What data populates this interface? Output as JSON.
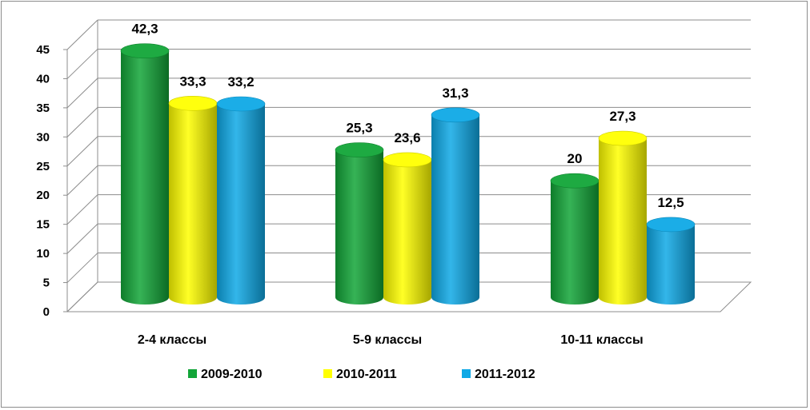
{
  "chart_data": {
    "type": "bar",
    "title": "",
    "xlabel": "",
    "ylabel": "",
    "categories": [
      "2-4 классы",
      "5-9 классы",
      "10-11 классы"
    ],
    "series": [
      {
        "name": "2009-2010",
        "color": "#12a538",
        "values": [
          42.3,
          25.3,
          20
        ],
        "labels": [
          "42,3",
          "25,3",
          "20"
        ]
      },
      {
        "name": "2010-2011",
        "color": "#ffff00",
        "values": [
          33.3,
          23.6,
          27.3
        ],
        "labels": [
          "33,3",
          "23,6",
          "27,3"
        ]
      },
      {
        "name": "2011-2012",
        "color": "#0fa9e6",
        "values": [
          33.2,
          31.3,
          12.5
        ],
        "labels": [
          "33,2",
          "31,3",
          "12,5"
        ]
      }
    ],
    "yticks": [
      "0",
      "5",
      "10",
      "15",
      "20",
      "25",
      "30",
      "35",
      "40",
      "45"
    ],
    "ylim": [
      0,
      45
    ],
    "grid": true,
    "legend": "bottom",
    "style": "3d-cylinder"
  }
}
